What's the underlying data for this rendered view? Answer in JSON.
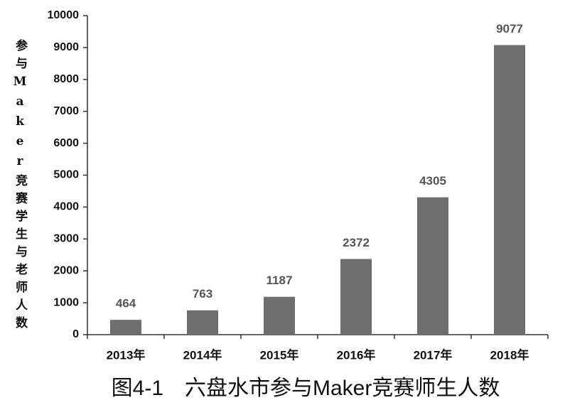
{
  "chart_data": {
    "type": "bar",
    "title": "图4-1　六盘水市参与Maker竞赛师生人数",
    "y_label": "参与Maker竞赛学生与老师人数",
    "categories": [
      "2013年",
      "2014年",
      "2015年",
      "2016年",
      "2017年",
      "2018年"
    ],
    "values": [
      464,
      763,
      1187,
      2372,
      4305,
      9077
    ],
    "color": "#6e6e6e",
    "ylim": [
      0,
      10000
    ],
    "yticks": [
      0,
      1000,
      2000,
      3000,
      4000,
      5000,
      6000,
      7000,
      8000,
      9000,
      10000
    ],
    "grid": false
  }
}
